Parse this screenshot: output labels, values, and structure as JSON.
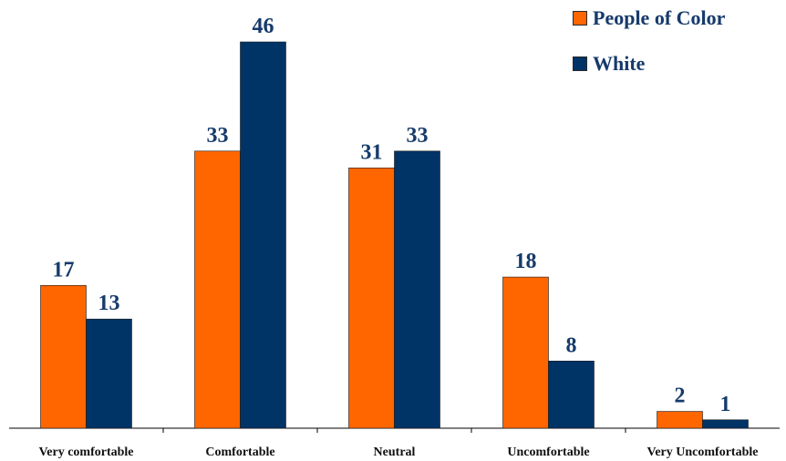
{
  "legend": [
    {
      "label": "People of Color",
      "color": "#ff6600"
    },
    {
      "label": "White",
      "color": "#003366"
    }
  ],
  "chart_data": {
    "type": "bar",
    "categories": [
      "Very comfortable",
      "Comfortable",
      "Neutral",
      "Uncomfortable",
      "Very Uncomfortable"
    ],
    "series": [
      {
        "name": "People of Color",
        "values": [
          17,
          33,
          31,
          18,
          2
        ],
        "color": "#ff6600"
      },
      {
        "name": "White",
        "values": [
          13,
          46,
          33,
          8,
          1
        ],
        "color": "#003366"
      }
    ],
    "title": "",
    "xlabel": "",
    "ylabel": "",
    "ylim": [
      0,
      46
    ],
    "grid": false,
    "legend_position": "top-right",
    "label_color": "#163a6b"
  }
}
